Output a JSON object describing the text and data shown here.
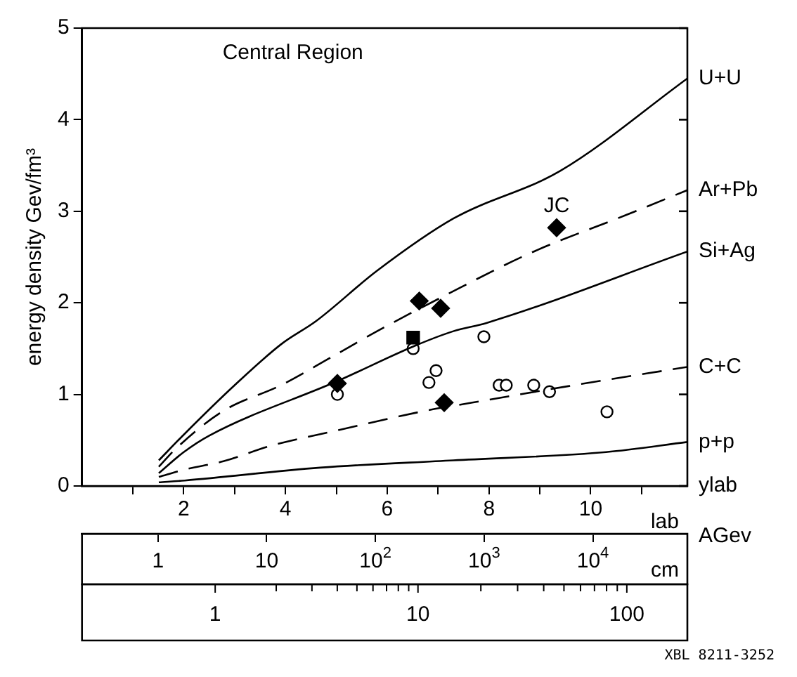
{
  "chart_data": {
    "type": "line",
    "title": "Central Region",
    "ylabel": "energy density Gev/fm³",
    "xlabel": "ylab",
    "x2label": "lab",
    "annotations": [
      {
        "text": "JC",
        "x": 9.33,
        "y": 2.82
      },
      "AGev",
      "cm",
      "1",
      "10",
      "100",
      "XBL 8211-3252"
    ],
    "xlim": [
      0,
      11.9
    ],
    "xticks": [
      {
        "value": 1,
        "label": null
      },
      2,
      {
        "value": 3,
        "label": null
      },
      4,
      {
        "value": 5,
        "label": null
      },
      6,
      {
        "value": 7,
        "label": null
      },
      8,
      {
        "value": 9,
        "label": null
      },
      10,
      {
        "value": 11,
        "label": null
      }
    ],
    "ylim": [
      0,
      5
    ],
    "yticks": [
      0,
      1,
      2,
      3,
      4,
      5
    ],
    "x2lim": [
      0.2,
      74000
    ],
    "x2ticks": [
      1,
      10,
      {
        "value": 100,
        "label": "10$^{2}$"
      },
      {
        "value": 1000,
        "label": "10$^{3}$"
      },
      {
        "value": 10000,
        "label": "10$^{4}$"
      }
    ],
    "log": "x2",
    "series": [
      {
        "name": "U+U",
        "color": "#000000",
        "line_style": "solid",
        "marker": "none",
        "x": [
          1.51,
          2,
          3,
          3.92,
          4.6,
          5.8,
          7.3,
          9.4,
          11.9
        ],
        "values": [
          0.28,
          0.56,
          1.1,
          1.55,
          1.8,
          2.35,
          2.92,
          3.44,
          4.45
        ]
      },
      {
        "name": "Ar+Pb",
        "color": "#000000",
        "line_style": "dashed",
        "marker": "none",
        "x": [
          1.51,
          1.85,
          2.78,
          3.91,
          4.85,
          5.8,
          7.1,
          8.8,
          10.7,
          11.9
        ],
        "values": [
          0.21,
          0.41,
          0.82,
          1.1,
          1.39,
          1.69,
          2.07,
          2.54,
          2.96,
          3.23
        ]
      },
      {
        "name": "Si+Ag",
        "color": "#000000",
        "line_style": "solid",
        "marker": "none",
        "x": [
          1.51,
          2,
          2.5,
          5.04,
          6.54,
          7.3,
          7.95,
          11.9
        ],
        "values": [
          0.14,
          0.37,
          0.55,
          1.15,
          1.53,
          1.69,
          1.78,
          2.56
        ]
      },
      {
        "name": "C+C",
        "color": "#000000",
        "line_style": "dashed",
        "marker": "none",
        "x": [
          1.51,
          2.02,
          2.78,
          3.72,
          5.04,
          6.74,
          7.67,
          9.56,
          11.9
        ],
        "values": [
          0.1,
          0.18,
          0.27,
          0.44,
          0.61,
          0.82,
          0.91,
          1.09,
          1.3
        ]
      },
      {
        "name": "p+p",
        "color": "#000000",
        "line_style": "solid",
        "marker": "none",
        "x": [
          1.51,
          2.02,
          4.68,
          7.3,
          10.3,
          11.9
        ],
        "values": [
          0.04,
          0.06,
          0.2,
          0.28,
          0.37,
          0.48
        ]
      },
      {
        "type": "scatter",
        "color": "#000000",
        "marker": "diamond",
        "x": [
          5.02,
          6.63,
          7.05,
          7.12,
          9.33
        ],
        "values": [
          1.12,
          2.02,
          1.94,
          0.91,
          2.82
        ]
      },
      {
        "type": "scatter",
        "color": "#000000",
        "marker": "square",
        "x": [
          6.51
        ],
        "values": [
          1.62
        ]
      },
      {
        "type": "scatter",
        "color": "#000000",
        "marker": "circle",
        "x": [
          5.02,
          6.51,
          6.82,
          6.96,
          7.9,
          8.2,
          8.34,
          8.88,
          9.19,
          10.32
        ],
        "values": [
          1.0,
          1.5,
          1.13,
          1.26,
          1.63,
          1.1,
          1.1,
          1.1,
          1.03,
          0.81
        ]
      }
    ]
  }
}
